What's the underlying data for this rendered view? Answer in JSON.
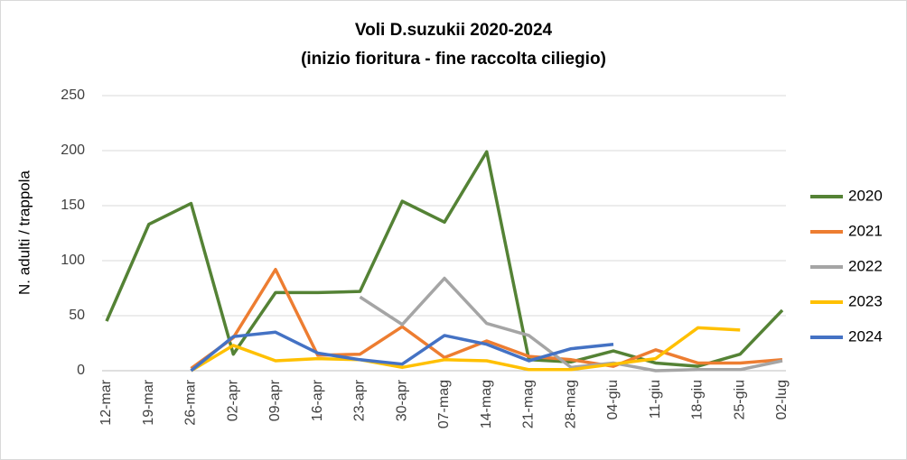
{
  "chart_data": {
    "type": "line",
    "title": [
      "Voli D.suzukii 2020-2024",
      "(inizio fioritura - fine raccolta ciliegio)"
    ],
    "y_label": "N. adulti / trappola",
    "categories": [
      "12-mar",
      "19-mar",
      "26-mar",
      "02-apr",
      "09-apr",
      "16-apr",
      "23-apr",
      "30-apr",
      "07-mag",
      "14-mag",
      "21-mag",
      "28-mag",
      "04-giu",
      "11-giu",
      "18-giu",
      "25-giu",
      "02-lug"
    ],
    "series": [
      {
        "name": "2020",
        "color": "#548235",
        "values": [
          45,
          133,
          152,
          15,
          71,
          71,
          72,
          154,
          135,
          199,
          10,
          8,
          18,
          7,
          4,
          15,
          55
        ]
      },
      {
        "name": "2021",
        "color": "#ed7d31",
        "values": [
          null,
          null,
          2,
          30,
          92,
          14,
          15,
          40,
          12,
          27,
          13,
          10,
          4,
          19,
          7,
          7,
          10
        ]
      },
      {
        "name": "2022",
        "color": "#a5a5a5",
        "values": [
          null,
          null,
          null,
          null,
          null,
          null,
          67,
          42,
          84,
          43,
          32,
          3,
          7,
          0,
          1,
          1,
          9
        ]
      },
      {
        "name": "2023",
        "color": "#ffc000",
        "values": [
          null,
          null,
          0,
          23,
          9,
          11,
          10,
          3,
          10,
          9,
          1,
          1,
          6,
          11,
          39,
          37,
          null
        ]
      },
      {
        "name": "2024",
        "color": "#4472c4",
        "values": [
          null,
          null,
          0,
          31,
          35,
          16,
          10,
          6,
          32,
          24,
          9,
          20,
          24,
          null,
          null,
          null,
          null
        ]
      }
    ],
    "ylim": [
      0,
      250
    ],
    "yticks": [
      0,
      50,
      100,
      150,
      200,
      250
    ],
    "grid": true,
    "legend": "right"
  }
}
